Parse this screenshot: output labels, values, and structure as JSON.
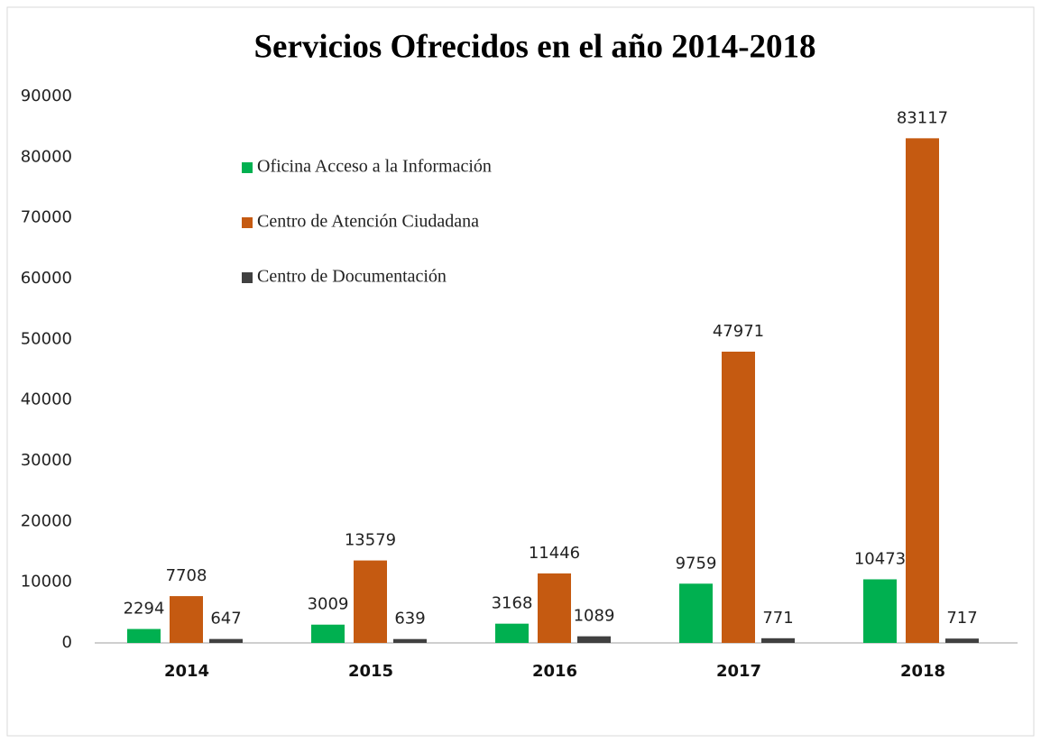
{
  "chart_data": {
    "type": "bar",
    "title": "Servicios Ofrecidos en el año 2014-2018",
    "categories": [
      "2014",
      "2015",
      "2016",
      "2017",
      "2018"
    ],
    "series": [
      {
        "name": "Oficina Acceso a la Información",
        "color": "#00b050",
        "values": [
          2294,
          3009,
          3168,
          9759,
          10473
        ]
      },
      {
        "name": "Centro de Atención Ciudadana",
        "color": "#c55a11",
        "values": [
          7708,
          13579,
          11446,
          47971,
          83117
        ]
      },
      {
        "name": "Centro de Documentación",
        "color": "#404040",
        "values": [
          647,
          639,
          1089,
          771,
          717
        ]
      }
    ],
    "ylim": [
      0,
      90000
    ],
    "yticks": [
      0,
      10000,
      20000,
      30000,
      40000,
      50000,
      60000,
      70000,
      80000,
      90000
    ],
    "grid": false,
    "legend": "top-left"
  }
}
